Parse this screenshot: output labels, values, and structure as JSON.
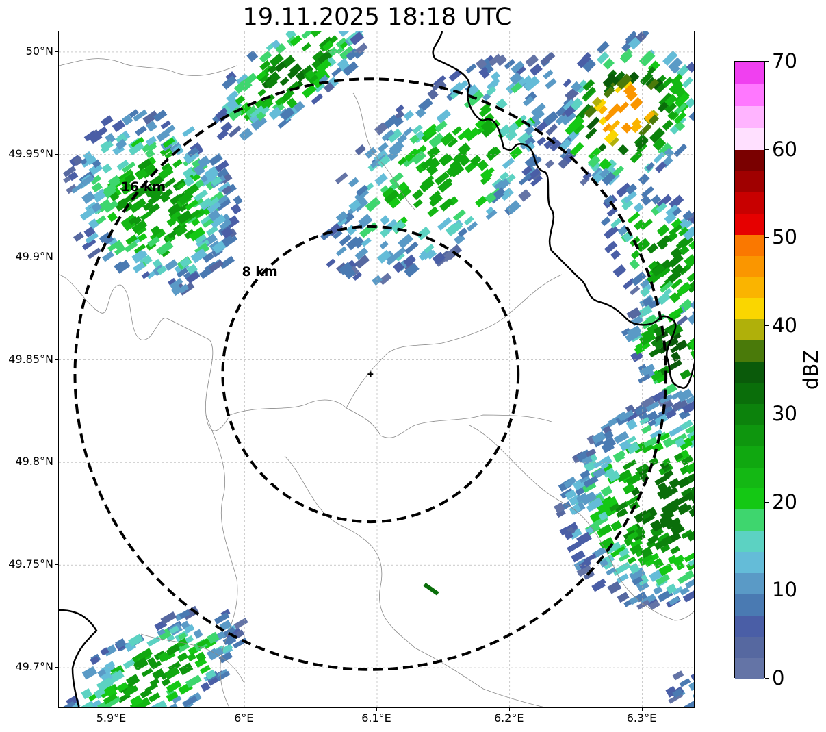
{
  "title": "19.11.2025 18:18 UTC",
  "map": {
    "extent": {
      "lon_min": 5.86,
      "lon_max": 6.34,
      "lat_min": 49.68,
      "lat_max": 50.01
    },
    "x_ticks": [
      {
        "value": 5.9,
        "label": "5.9°E"
      },
      {
        "value": 6.0,
        "label": "6°E"
      },
      {
        "value": 6.1,
        "label": "6.1°E"
      },
      {
        "value": 6.2,
        "label": "6.2°E"
      },
      {
        "value": 6.3,
        "label": "6.3°E"
      }
    ],
    "y_ticks": [
      {
        "value": 50.0,
        "label": "50°N"
      },
      {
        "value": 49.95,
        "label": "49.95°N"
      },
      {
        "value": 49.9,
        "label": "49.9°N"
      },
      {
        "value": 49.85,
        "label": "49.85°N"
      },
      {
        "value": 49.8,
        "label": "49.8°N"
      },
      {
        "value": 49.75,
        "label": "49.75°N"
      },
      {
        "value": 49.7,
        "label": "49.7°N"
      }
    ],
    "radar_site": {
      "lon": 6.095,
      "lat": 49.843,
      "symbol": "plus-icon"
    },
    "range_rings": [
      {
        "radius_km": 8,
        "label": "8 km"
      },
      {
        "radius_km": 16,
        "label": "16 km"
      }
    ],
    "ring_style": {
      "color": "#000000",
      "dashed": true
    },
    "gridlines": true
  },
  "colorbar": {
    "label": "dBZ",
    "min": 0,
    "max": 70,
    "ticks": [
      "0",
      "10",
      "20",
      "30",
      "40",
      "50",
      "60",
      "70"
    ],
    "colors": [
      "#6474a6",
      "#5668a0",
      "#4a5ea6",
      "#4a7ab2",
      "#5a9ac6",
      "#64bcd8",
      "#5cd2c2",
      "#3ed66e",
      "#14c814",
      "#14b814",
      "#10a810",
      "#0e960e",
      "#0c820c",
      "#0a6e0a",
      "#0a5a0a",
      "#4a7a0a",
      "#b0b00a",
      "#fad600",
      "#fab400",
      "#fa9600",
      "#fa7800",
      "#e60000",
      "#c80000",
      "#a00000",
      "#7a0000",
      "#ffe0ff",
      "#ffb4ff",
      "#ff78ff",
      "#f040f0"
    ]
  }
}
